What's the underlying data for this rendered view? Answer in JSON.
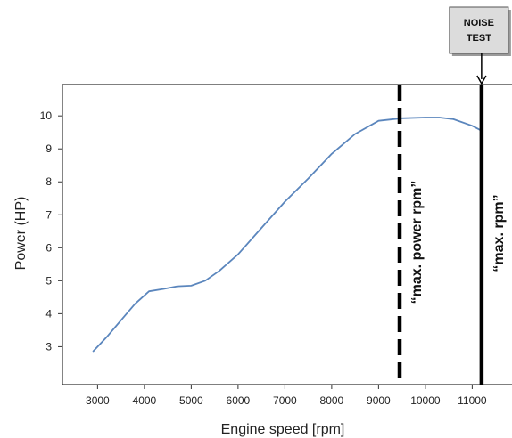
{
  "chart_data": {
    "type": "line",
    "xlabel": "Engine speed [rpm]",
    "ylabel": "Power (HP)",
    "x_ticks": [
      3000,
      4000,
      5000,
      6000,
      7000,
      8000,
      9000,
      10000,
      11000
    ],
    "y_ticks": [
      3,
      4,
      5,
      6,
      7,
      8,
      9,
      10
    ],
    "xlim": [
      2250,
      11850
    ],
    "ylim": [
      1.85,
      10.95
    ],
    "grid": false,
    "series": [
      {
        "color": "#5b86bd",
        "x": [
          2900,
          3200,
          3500,
          3800,
          4100,
          4400,
          4700,
          5000,
          5300,
          5600,
          6000,
          6500,
          7000,
          7500,
          8000,
          8500,
          9000,
          9500,
          10000,
          10300,
          10600,
          11000,
          11200
        ],
        "y": [
          2.85,
          3.3,
          3.8,
          4.3,
          4.68,
          4.75,
          4.83,
          4.85,
          5.0,
          5.3,
          5.8,
          6.6,
          7.4,
          8.1,
          8.85,
          9.45,
          9.85,
          9.93,
          9.95,
          9.95,
          9.9,
          9.7,
          9.55
        ]
      }
    ],
    "reference_lines": [
      {
        "x": 9450,
        "style": "dashed",
        "label": "“max. power rpm”"
      },
      {
        "x": 11200,
        "style": "solid",
        "label": "“max. rpm”"
      }
    ],
    "annotation": {
      "line1": "NOISE",
      "line2": "TEST",
      "points_to_x": 11200
    }
  }
}
